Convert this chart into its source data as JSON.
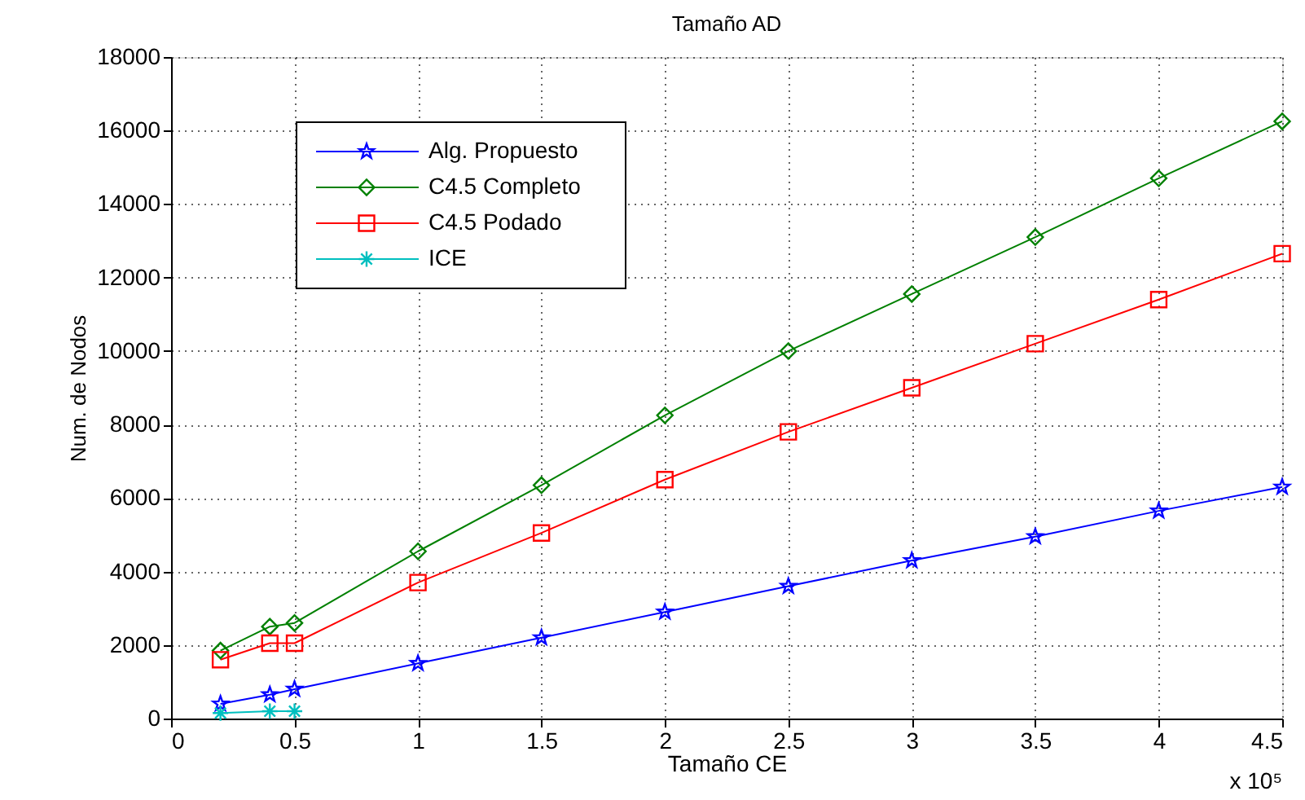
{
  "chart_data": {
    "type": "line",
    "title": "Tamaño AD",
    "xlabel": "Tamaño CE",
    "ylabel": "Num. de Nodos",
    "x": [
      0.2,
      0.4,
      0.5,
      1,
      1.5,
      2,
      2.5,
      3,
      3.5,
      4,
      4.5
    ],
    "series": [
      {
        "name": "Alg. Propuesto",
        "color": "#0000ff",
        "marker": "star",
        "values": [
          400,
          650,
          800,
          1500,
          2200,
          2900,
          3600,
          4300,
          4950,
          5650,
          6300
        ]
      },
      {
        "name": "C4.5 Completo",
        "color": "#008000",
        "marker": "diamond",
        "values": [
          1850,
          2500,
          2600,
          4550,
          6350,
          8250,
          10000,
          11550,
          13100,
          14700,
          16250
        ]
      },
      {
        "name": "C4.5 Podado",
        "color": "#ff0000",
        "marker": "square",
        "values": [
          1600,
          2050,
          2050,
          3700,
          5050,
          6500,
          7800,
          9000,
          10200,
          11400,
          12650
        ]
      },
      {
        "name": "ICE",
        "color": "#00bfbf",
        "marker": "cross",
        "x": [
          0.2,
          0.4,
          0.5
        ],
        "values": [
          150,
          200,
          200
        ]
      }
    ],
    "xlim": [
      0,
      4.5
    ],
    "xticks": [
      0,
      0.5,
      1,
      1.5,
      2,
      2.5,
      3,
      3.5,
      4,
      4.5
    ],
    "ylim": [
      0,
      18000
    ],
    "yticks": [
      0,
      2000,
      4000,
      6000,
      8000,
      10000,
      12000,
      14000,
      16000,
      18000
    ],
    "grid": true,
    "legend": "top left",
    "line_style": "solid",
    "annotations": [
      "x 10⁵"
    ]
  }
}
